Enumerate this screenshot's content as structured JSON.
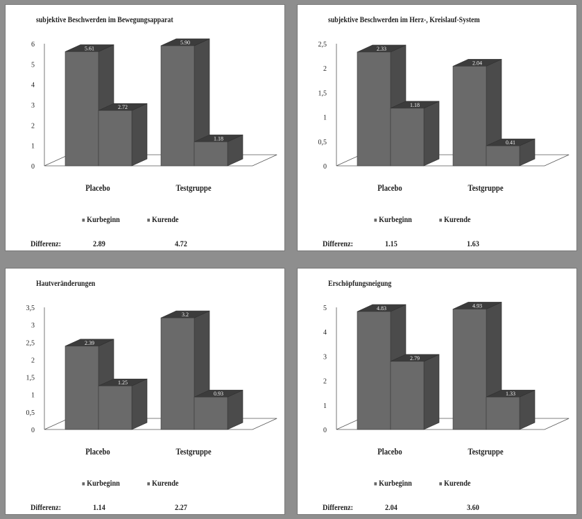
{
  "chart_data": [
    {
      "type": "bar",
      "title": "subjektive Beschwerden im Bewegungsapparat",
      "categories": [
        "Placebo",
        "Testgruppe"
      ],
      "series": [
        {
          "name": "Kurbeginn",
          "values": [
            5.61,
            5.9
          ]
        },
        {
          "name": "Kurende",
          "values": [
            2.72,
            1.18
          ]
        }
      ],
      "data_labels": [
        [
          "5.61",
          "2.72"
        ],
        [
          "5.90",
          "1.18"
        ]
      ],
      "ylim": [
        0,
        6
      ],
      "yticks": [
        "0",
        "1",
        "2",
        "3",
        "4",
        "5",
        "6"
      ],
      "difference_label": "Differenz:",
      "differences": [
        "2.89",
        "4.72"
      ]
    },
    {
      "type": "bar",
      "title": "subjektive Beschwerden im Herz-, Kreislauf-System",
      "categories": [
        "Placebo",
        "Testgruppe"
      ],
      "series": [
        {
          "name": "Kurbeginn",
          "values": [
            2.33,
            2.04
          ]
        },
        {
          "name": "Kurende",
          "values": [
            1.18,
            0.41
          ]
        }
      ],
      "data_labels": [
        [
          "2.33",
          "1.18"
        ],
        [
          "2.04",
          "0.41"
        ]
      ],
      "ylim": [
        0,
        2.5
      ],
      "yticks": [
        "0",
        "0,5",
        "1",
        "1,5",
        "2",
        "2,5"
      ],
      "difference_label": "Differenz:",
      "differences": [
        "1.15",
        "1.63"
      ]
    },
    {
      "type": "bar",
      "title": "Hautveränderungen",
      "categories": [
        "Placebo",
        "Testgruppe"
      ],
      "series": [
        {
          "name": "Kurbeginn",
          "values": [
            2.39,
            3.2
          ]
        },
        {
          "name": "Kurende",
          "values": [
            1.25,
            0.93
          ]
        }
      ],
      "data_labels": [
        [
          "2.39",
          "1.25"
        ],
        [
          "3.2",
          "0.93"
        ]
      ],
      "ylim": [
        0,
        3.5
      ],
      "yticks": [
        "0",
        "0,5",
        "1",
        "1,5",
        "2",
        "2,5",
        "3",
        "3,5"
      ],
      "difference_label": "Differenz:",
      "differences": [
        "1.14",
        "2.27"
      ]
    },
    {
      "type": "bar",
      "title": "Erschöpfungsneigung",
      "categories": [
        "Placebo",
        "Testgruppe"
      ],
      "series": [
        {
          "name": "Kurbeginn",
          "values": [
            4.83,
            4.93
          ]
        },
        {
          "name": "Kurende",
          "values": [
            2.79,
            1.33
          ]
        }
      ],
      "data_labels": [
        [
          "4.83",
          "2.79"
        ],
        [
          "4.93",
          "1.33"
        ]
      ],
      "ylim": [
        0,
        5
      ],
      "yticks": [
        "0",
        "1",
        "2",
        "3",
        "4",
        "5"
      ],
      "difference_label": "Differenz:",
      "differences": [
        "2.04",
        "3.60"
      ]
    }
  ],
  "colors": {
    "bar_front": "#6a6a6a",
    "bar_side": "#4b4b4b",
    "bar_top": "#3c3c3c",
    "floor": "#ffffff",
    "background": "#8e8e8e"
  }
}
